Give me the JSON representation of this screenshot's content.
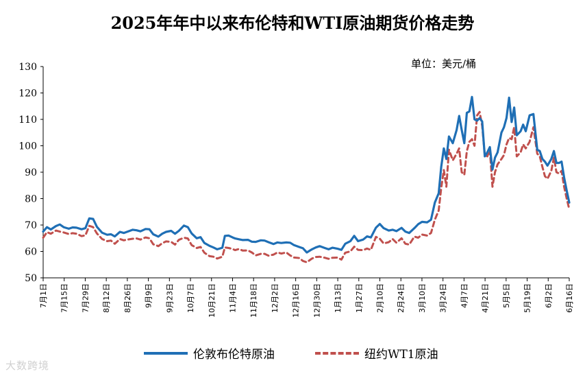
{
  "chart_data": {
    "type": "line",
    "title": "2025年年中以来布伦特和WTI原油期货价格走势",
    "unit_note": "单位：美元/桶",
    "ylim": [
      50,
      130
    ],
    "yticks": [
      50,
      60,
      70,
      80,
      90,
      100,
      110,
      120,
      130
    ],
    "xticks": [
      "7月1日",
      "7月15日",
      "7月29日",
      "8月12日",
      "8月26日",
      "9月9日",
      "9月23日",
      "10月7日",
      "10月21日",
      "11月4日",
      "11月18日",
      "12月2日",
      "12月16日",
      "12月30日",
      "1月13日",
      "1月27日",
      "2月10日",
      "2月24日",
      "3月10日",
      "3月24日",
      "4月7日",
      "4月21日",
      "5月5日",
      "5月19日",
      "6月2日",
      "6月16日"
    ],
    "grid": false,
    "legend_position": "bottom",
    "series": [
      {
        "name": "伦敦布伦特原油",
        "color": "#1f6fb5",
        "style": "solid",
        "points": [
          [
            0,
            67.5
          ],
          [
            0.3,
            69.2
          ],
          [
            0.6,
            68.3
          ],
          [
            1,
            69.6
          ],
          [
            1.3,
            70.2
          ],
          [
            1.6,
            69.2
          ],
          [
            2,
            68.6
          ],
          [
            2.3,
            69.1
          ],
          [
            2.6,
            69.0
          ],
          [
            3,
            68.4
          ],
          [
            3.3,
            68.8
          ],
          [
            3.6,
            72.5
          ],
          [
            3.9,
            72.3
          ],
          [
            4.2,
            69.3
          ],
          [
            4.6,
            67.1
          ],
          [
            5,
            66.3
          ],
          [
            5.3,
            66.5
          ],
          [
            5.6,
            65.7
          ],
          [
            6,
            67.4
          ],
          [
            6.3,
            67.0
          ],
          [
            6.6,
            67.5
          ],
          [
            7,
            68.2
          ],
          [
            7.3,
            68.0
          ],
          [
            7.6,
            67.6
          ],
          [
            8,
            68.5
          ],
          [
            8.3,
            68.4
          ],
          [
            8.6,
            66.5
          ],
          [
            9,
            65.6
          ],
          [
            9.3,
            66.7
          ],
          [
            9.6,
            67.4
          ],
          [
            10,
            67.8
          ],
          [
            10.3,
            66.7
          ],
          [
            10.6,
            67.8
          ],
          [
            11,
            69.8
          ],
          [
            11.3,
            69.2
          ],
          [
            11.6,
            66.8
          ],
          [
            12,
            65.0
          ],
          [
            12.3,
            65.4
          ],
          [
            12.6,
            63.2
          ],
          [
            13,
            62.1
          ],
          [
            13.3,
            61.5
          ],
          [
            13.6,
            60.8
          ],
          [
            14,
            61.4
          ],
          [
            14.2,
            65.9
          ],
          [
            14.5,
            66.0
          ],
          [
            14.8,
            65.3
          ],
          [
            15,
            64.9
          ],
          [
            15.3,
            64.6
          ],
          [
            15.6,
            64.3
          ],
          [
            16,
            64.4
          ],
          [
            16.3,
            63.7
          ],
          [
            16.6,
            63.6
          ],
          [
            17,
            64.2
          ],
          [
            17.3,
            64.1
          ],
          [
            17.6,
            63.5
          ],
          [
            18,
            62.8
          ],
          [
            18.3,
            63.4
          ],
          [
            18.6,
            63.2
          ],
          [
            19,
            63.4
          ],
          [
            19.3,
            63.3
          ],
          [
            19.6,
            62.4
          ],
          [
            20,
            61.7
          ],
          [
            20.3,
            61.2
          ],
          [
            20.6,
            59.6
          ],
          [
            21,
            60.8
          ],
          [
            21.3,
            61.5
          ],
          [
            21.6,
            62.0
          ],
          [
            22,
            61.3
          ],
          [
            22.3,
            60.8
          ],
          [
            22.6,
            61.4
          ],
          [
            23,
            61.0
          ],
          [
            23.3,
            60.6
          ],
          [
            23.6,
            62.9
          ],
          [
            24,
            63.9
          ],
          [
            24.3,
            65.9
          ],
          [
            24.6,
            63.9
          ],
          [
            25,
            64.5
          ],
          [
            25.3,
            65.7
          ],
          [
            25.6,
            65.3
          ],
          [
            26,
            69.0
          ],
          [
            26.3,
            70.4
          ],
          [
            26.6,
            68.8
          ],
          [
            27,
            67.9
          ],
          [
            27.3,
            68.2
          ],
          [
            27.6,
            67.7
          ],
          [
            28,
            68.9
          ],
          [
            28.3,
            67.5
          ],
          [
            28.6,
            67.0
          ],
          [
            29,
            68.8
          ],
          [
            29.3,
            70.3
          ],
          [
            29.6,
            71.2
          ],
          [
            30,
            71.0
          ],
          [
            30.3,
            72.0
          ],
          [
            30.6,
            78.5
          ],
          [
            30.9,
            82.0
          ],
          [
            31.1,
            92.0
          ],
          [
            31.3,
            99.0
          ],
          [
            31.5,
            95.0
          ],
          [
            31.7,
            103.5
          ],
          [
            32,
            101.0
          ],
          [
            32.3,
            106.0
          ],
          [
            32.5,
            111.3
          ],
          [
            32.7,
            106.0
          ],
          [
            32.9,
            101.0
          ],
          [
            33.1,
            112.5
          ],
          [
            33.3,
            113.0
          ],
          [
            33.5,
            118.5
          ],
          [
            33.7,
            110.0
          ],
          [
            33.9,
            109.5
          ],
          [
            34.1,
            110.5
          ],
          [
            34.3,
            109.2
          ],
          [
            34.5,
            96.0
          ],
          [
            34.7,
            97.5
          ],
          [
            34.9,
            99.5
          ],
          [
            35.1,
            91.0
          ],
          [
            35.3,
            95.5
          ],
          [
            35.5,
            97.5
          ],
          [
            35.8,
            105.0
          ],
          [
            36,
            107.0
          ],
          [
            36.2,
            110.5
          ],
          [
            36.4,
            118.2
          ],
          [
            36.6,
            109.0
          ],
          [
            36.8,
            114.5
          ],
          [
            37,
            104.0
          ],
          [
            37.3,
            105.5
          ],
          [
            37.5,
            108.0
          ],
          [
            37.7,
            105.5
          ],
          [
            38,
            111.5
          ],
          [
            38.3,
            112.0
          ],
          [
            38.6,
            98.5
          ],
          [
            38.8,
            98.0
          ],
          [
            39,
            95.0
          ],
          [
            39.2,
            94.0
          ],
          [
            39.4,
            92.5
          ],
          [
            39.7,
            95.0
          ],
          [
            39.9,
            98.0
          ],
          [
            40.1,
            93.5
          ],
          [
            40.3,
            93.5
          ],
          [
            40.5,
            94.0
          ],
          [
            40.7,
            88.0
          ],
          [
            40.9,
            83.0
          ],
          [
            41.1,
            78.5
          ]
        ]
      },
      {
        "name": "纽约WT1原油",
        "color": "#c0504d",
        "style": "dashed",
        "points": [
          [
            0,
            65.2
          ],
          [
            0.3,
            67.3
          ],
          [
            0.6,
            66.7
          ],
          [
            1,
            67.9
          ],
          [
            1.3,
            67.5
          ],
          [
            1.6,
            67.2
          ],
          [
            2,
            66.6
          ],
          [
            2.3,
            66.9
          ],
          [
            2.6,
            66.7
          ],
          [
            3,
            65.8
          ],
          [
            3.3,
            66.1
          ],
          [
            3.6,
            69.7
          ],
          [
            3.9,
            69.2
          ],
          [
            4.2,
            66.8
          ],
          [
            4.6,
            64.7
          ],
          [
            5,
            63.9
          ],
          [
            5.3,
            64.1
          ],
          [
            5.6,
            62.9
          ],
          [
            6,
            64.7
          ],
          [
            6.3,
            64.2
          ],
          [
            6.6,
            64.5
          ],
          [
            7,
            64.8
          ],
          [
            7.3,
            64.9
          ],
          [
            7.6,
            64.5
          ],
          [
            8,
            65.3
          ],
          [
            8.3,
            65.0
          ],
          [
            8.6,
            62.7
          ],
          [
            9,
            62.0
          ],
          [
            9.3,
            63.1
          ],
          [
            9.6,
            63.8
          ],
          [
            10,
            63.6
          ],
          [
            10.3,
            62.6
          ],
          [
            10.6,
            64.4
          ],
          [
            11,
            65.2
          ],
          [
            11.3,
            64.9
          ],
          [
            11.6,
            62.4
          ],
          [
            12,
            61.3
          ],
          [
            12.3,
            61.7
          ],
          [
            12.6,
            59.5
          ],
          [
            13,
            58.2
          ],
          [
            13.3,
            58.0
          ],
          [
            13.6,
            57.3
          ],
          [
            14,
            58.0
          ],
          [
            14.2,
            61.5
          ],
          [
            14.5,
            61.3
          ],
          [
            14.8,
            60.9
          ],
          [
            15,
            60.5
          ],
          [
            15.3,
            60.9
          ],
          [
            15.6,
            60.3
          ],
          [
            16,
            60.4
          ],
          [
            16.3,
            59.6
          ],
          [
            16.6,
            58.5
          ],
          [
            17,
            59.1
          ],
          [
            17.3,
            59.1
          ],
          [
            17.6,
            58.4
          ],
          [
            18,
            58.8
          ],
          [
            18.3,
            59.6
          ],
          [
            18.6,
            59.2
          ],
          [
            19,
            59.6
          ],
          [
            19.3,
            58.5
          ],
          [
            19.6,
            57.7
          ],
          [
            20,
            57.5
          ],
          [
            20.3,
            56.4
          ],
          [
            20.6,
            55.9
          ],
          [
            21,
            57.3
          ],
          [
            21.3,
            57.9
          ],
          [
            21.6,
            58.0
          ],
          [
            22,
            57.6
          ],
          [
            22.3,
            57.2
          ],
          [
            22.6,
            57.6
          ],
          [
            23,
            57.7
          ],
          [
            23.3,
            56.9
          ],
          [
            23.6,
            59.5
          ],
          [
            24,
            60.0
          ],
          [
            24.3,
            61.8
          ],
          [
            24.6,
            60.6
          ],
          [
            25,
            60.5
          ],
          [
            25.3,
            61.1
          ],
          [
            25.6,
            60.6
          ],
          [
            26,
            65.5
          ],
          [
            26.3,
            64.8
          ],
          [
            26.6,
            63.0
          ],
          [
            27,
            63.5
          ],
          [
            27.3,
            64.7
          ],
          [
            27.6,
            63.3
          ],
          [
            28,
            65.0
          ],
          [
            28.3,
            62.9
          ],
          [
            28.6,
            62.6
          ],
          [
            29,
            65.6
          ],
          [
            29.3,
            65.2
          ],
          [
            29.6,
            66.4
          ],
          [
            30,
            66.0
          ],
          [
            30.3,
            67.0
          ],
          [
            30.6,
            72.0
          ],
          [
            30.9,
            75.5
          ],
          [
            31.1,
            84.0
          ],
          [
            31.3,
            90.8
          ],
          [
            31.5,
            84.5
          ],
          [
            31.7,
            98.5
          ],
          [
            32,
            94.5
          ],
          [
            32.3,
            97.0
          ],
          [
            32.5,
            99.0
          ],
          [
            32.7,
            90.0
          ],
          [
            32.9,
            89.0
          ],
          [
            33.1,
            98.0
          ],
          [
            33.3,
            101.5
          ],
          [
            33.5,
            102.5
          ],
          [
            33.7,
            100.0
          ],
          [
            33.9,
            111.5
          ],
          [
            34.1,
            112.8
          ],
          [
            34.3,
            107.5
          ],
          [
            34.5,
            96.5
          ],
          [
            34.7,
            96.0
          ],
          [
            34.9,
            98.5
          ],
          [
            35.1,
            84.5
          ],
          [
            35.3,
            90.0
          ],
          [
            35.5,
            93.0
          ],
          [
            35.8,
            95.0
          ],
          [
            36,
            96.5
          ],
          [
            36.2,
            100.5
          ],
          [
            36.4,
            103.0
          ],
          [
            36.6,
            102.5
          ],
          [
            36.8,
            107.0
          ],
          [
            37,
            96.0
          ],
          [
            37.3,
            97.5
          ],
          [
            37.5,
            100.5
          ],
          [
            37.7,
            99.0
          ],
          [
            38,
            101.5
          ],
          [
            38.3,
            107.0
          ],
          [
            38.6,
            97.0
          ],
          [
            38.8,
            96.0
          ],
          [
            39,
            92.0
          ],
          [
            39.2,
            88.5
          ],
          [
            39.4,
            87.5
          ],
          [
            39.7,
            90.5
          ],
          [
            39.9,
            95.5
          ],
          [
            40.1,
            90.0
          ],
          [
            40.3,
            89.5
          ],
          [
            40.5,
            90.5
          ],
          [
            40.7,
            84.5
          ],
          [
            40.9,
            80.0
          ],
          [
            41.1,
            76.0
          ]
        ]
      }
    ]
  },
  "watermark": "大数跨境"
}
